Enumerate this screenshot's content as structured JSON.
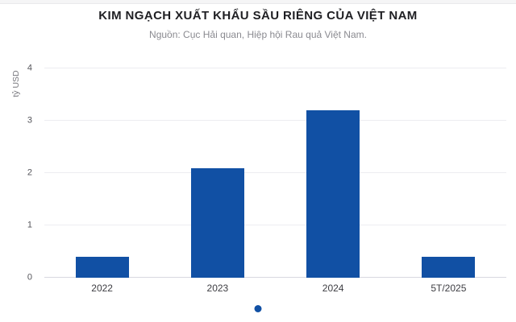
{
  "header": {
    "title": "KIM NGẠCH XUẤT KHẨU SẦU RIÊNG CỦA VIỆT NAM",
    "subtitle": "Nguồn: Cục Hải quan, Hiệp hội Rau quả Việt Nam."
  },
  "chart_data": {
    "type": "bar",
    "title": "KIM NGẠCH XUẤT KHẨU SẦU RIÊNG CỦA VIỆT NAM",
    "subtitle": "Nguồn: Cục Hải quan, Hiệp hội Rau quả Việt Nam.",
    "categories": [
      "2022",
      "2023",
      "2024",
      "5T/2025"
    ],
    "values": [
      0.4,
      2.1,
      3.2,
      0.4
    ],
    "xlabel": "",
    "ylabel": "tỷ USD",
    "ylim": [
      0,
      4
    ],
    "yticks": [
      0,
      1,
      2,
      3,
      4
    ],
    "grid": true,
    "legend": "none",
    "bar_color": "#1150a4"
  },
  "carousel": {
    "active_dot_color": "#1150a4"
  }
}
